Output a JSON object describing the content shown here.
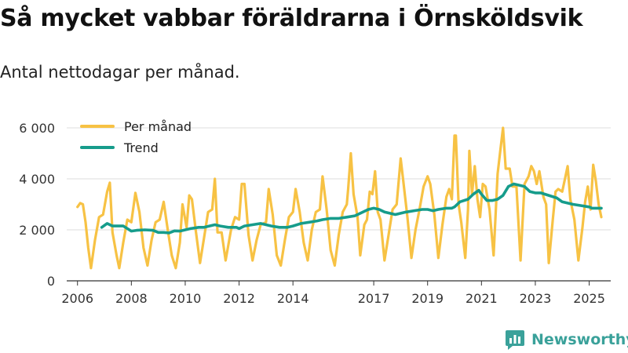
{
  "header": {
    "title": "Så mycket vabbar föräldrarna i Örnsköldsvik",
    "subtitle": "Antal nettodagar per månad."
  },
  "brand": {
    "name": "Newsworthy",
    "icon": "newsworthy-logo-icon"
  },
  "colors": {
    "monthly": "#f7c244",
    "trend": "#169c8b",
    "grid": "#dddddd",
    "brand": "#3aa19a"
  },
  "chart_data": {
    "type": "line",
    "title": "Så mycket vabbar föräldrarna i Örnsköldsvik",
    "subtitle": "Antal nettodagar per månad.",
    "xlabel": "",
    "ylabel": "",
    "xlim": [
      2005.6,
      2025.8
    ],
    "ylim": [
      0,
      6000
    ],
    "grid": true,
    "legend_position": "top-left",
    "x_ticks": [
      {
        "value": 2006,
        "label": "2006"
      },
      {
        "value": 2008,
        "label": "2008"
      },
      {
        "value": 2010,
        "label": "2010"
      },
      {
        "value": 2012,
        "label": "2012"
      },
      {
        "value": 2014,
        "label": "2014"
      },
      {
        "value": 2017,
        "label": "2017"
      },
      {
        "value": 2019,
        "label": "2019"
      },
      {
        "value": 2021,
        "label": "2021"
      },
      {
        "value": 2023,
        "label": "2023"
      },
      {
        "value": 2025,
        "label": "2025"
      }
    ],
    "y_ticks": [
      {
        "value": 0,
        "label": "0"
      },
      {
        "value": 2000,
        "label": "2 000"
      },
      {
        "value": 4000,
        "label": "4 000"
      },
      {
        "value": 6000,
        "label": "6 000"
      }
    ],
    "series": [
      {
        "name": "Per månad",
        "color": "#f7c244",
        "points": [
          [
            2006.0,
            2900
          ],
          [
            2006.1,
            3050
          ],
          [
            2006.2,
            3000
          ],
          [
            2006.3,
            2300
          ],
          [
            2006.4,
            1300
          ],
          [
            2006.5,
            500
          ],
          [
            2006.65,
            1600
          ],
          [
            2006.8,
            2500
          ],
          [
            2006.95,
            2600
          ],
          [
            2007.1,
            3500
          ],
          [
            2007.2,
            3850
          ],
          [
            2007.3,
            1900
          ],
          [
            2007.45,
            1000
          ],
          [
            2007.55,
            500
          ],
          [
            2007.7,
            1500
          ],
          [
            2007.85,
            2400
          ],
          [
            2008.0,
            2300
          ],
          [
            2008.15,
            3450
          ],
          [
            2008.3,
            2700
          ],
          [
            2008.45,
            1300
          ],
          [
            2008.6,
            600
          ],
          [
            2008.75,
            1600
          ],
          [
            2008.9,
            2300
          ],
          [
            2009.05,
            2400
          ],
          [
            2009.2,
            3100
          ],
          [
            2009.35,
            2000
          ],
          [
            2009.5,
            1000
          ],
          [
            2009.65,
            500
          ],
          [
            2009.8,
            1500
          ],
          [
            2009.9,
            3000
          ],
          [
            2010.05,
            2100
          ],
          [
            2010.15,
            3350
          ],
          [
            2010.25,
            3200
          ],
          [
            2010.4,
            1900
          ],
          [
            2010.55,
            700
          ],
          [
            2010.7,
            1700
          ],
          [
            2010.85,
            2700
          ],
          [
            2011.0,
            2800
          ],
          [
            2011.1,
            4000
          ],
          [
            2011.2,
            1900
          ],
          [
            2011.35,
            1900
          ],
          [
            2011.5,
            800
          ],
          [
            2011.7,
            2000
          ],
          [
            2011.85,
            2500
          ],
          [
            2012.0,
            2400
          ],
          [
            2012.1,
            3800
          ],
          [
            2012.2,
            3800
          ],
          [
            2012.35,
            1800
          ],
          [
            2012.5,
            800
          ],
          [
            2012.65,
            1600
          ],
          [
            2012.8,
            2200
          ],
          [
            2013.0,
            2300
          ],
          [
            2013.1,
            3600
          ],
          [
            2013.25,
            2600
          ],
          [
            2013.4,
            1000
          ],
          [
            2013.55,
            600
          ],
          [
            2013.7,
            1600
          ],
          [
            2013.85,
            2500
          ],
          [
            2014.0,
            2700
          ],
          [
            2014.1,
            3600
          ],
          [
            2014.25,
            2700
          ],
          [
            2014.4,
            1500
          ],
          [
            2014.55,
            800
          ],
          [
            2014.7,
            2000
          ],
          [
            2014.85,
            2700
          ],
          [
            2015.0,
            2800
          ],
          [
            2015.1,
            4100
          ],
          [
            2015.25,
            2800
          ],
          [
            2015.4,
            1200
          ],
          [
            2015.55,
            600
          ],
          [
            2015.7,
            1800
          ],
          [
            2015.85,
            2700
          ],
          [
            2016.0,
            3000
          ],
          [
            2016.05,
            3600
          ],
          [
            2016.15,
            5000
          ],
          [
            2016.25,
            3400
          ],
          [
            2016.4,
            2500
          ],
          [
            2016.5,
            1000
          ],
          [
            2016.65,
            2200
          ],
          [
            2016.75,
            2400
          ],
          [
            2016.85,
            3500
          ],
          [
            2016.95,
            3400
          ],
          [
            2017.05,
            4300
          ],
          [
            2017.15,
            2700
          ],
          [
            2017.25,
            2400
          ],
          [
            2017.4,
            800
          ],
          [
            2017.55,
            1800
          ],
          [
            2017.7,
            2800
          ],
          [
            2017.85,
            3000
          ],
          [
            2018.0,
            4800
          ],
          [
            2018.1,
            3900
          ],
          [
            2018.25,
            2500
          ],
          [
            2018.4,
            900
          ],
          [
            2018.55,
            2000
          ],
          [
            2018.7,
            2800
          ],
          [
            2018.85,
            3700
          ],
          [
            2019.0,
            4100
          ],
          [
            2019.1,
            3800
          ],
          [
            2019.25,
            2600
          ],
          [
            2019.4,
            900
          ],
          [
            2019.55,
            2200
          ],
          [
            2019.7,
            3300
          ],
          [
            2019.8,
            3600
          ],
          [
            2019.9,
            3200
          ],
          [
            2020.0,
            5700
          ],
          [
            2020.05,
            5700
          ],
          [
            2020.15,
            3000
          ],
          [
            2020.25,
            2300
          ],
          [
            2020.4,
            900
          ],
          [
            2020.5,
            2800
          ],
          [
            2020.55,
            5100
          ],
          [
            2020.65,
            3400
          ],
          [
            2020.75,
            4500
          ],
          [
            2020.85,
            3200
          ],
          [
            2020.95,
            2500
          ],
          [
            2021.05,
            3800
          ],
          [
            2021.15,
            3700
          ],
          [
            2021.3,
            2800
          ],
          [
            2021.45,
            1000
          ],
          [
            2021.6,
            4200
          ],
          [
            2021.7,
            5100
          ],
          [
            2021.8,
            6000
          ],
          [
            2021.9,
            4400
          ],
          [
            2022.05,
            4400
          ],
          [
            2022.15,
            3700
          ],
          [
            2022.3,
            3700
          ],
          [
            2022.45,
            800
          ],
          [
            2022.6,
            3800
          ],
          [
            2022.75,
            4100
          ],
          [
            2022.85,
            4500
          ],
          [
            2022.95,
            4300
          ],
          [
            2023.05,
            3800
          ],
          [
            2023.15,
            4300
          ],
          [
            2023.3,
            3300
          ],
          [
            2023.4,
            3000
          ],
          [
            2023.5,
            700
          ],
          [
            2023.65,
            2400
          ],
          [
            2023.75,
            3500
          ],
          [
            2023.85,
            3600
          ],
          [
            2024.0,
            3500
          ],
          [
            2024.1,
            4000
          ],
          [
            2024.2,
            4500
          ],
          [
            2024.3,
            3200
          ],
          [
            2024.45,
            2400
          ],
          [
            2024.6,
            800
          ],
          [
            2024.75,
            2100
          ],
          [
            2024.85,
            3100
          ],
          [
            2024.95,
            3700
          ],
          [
            2025.05,
            2800
          ],
          [
            2025.15,
            4550
          ],
          [
            2025.25,
            3900
          ],
          [
            2025.35,
            3000
          ],
          [
            2025.45,
            2500
          ]
        ]
      },
      {
        "name": "Trend",
        "color": "#169c8b",
        "points": [
          [
            2006.9,
            2100
          ],
          [
            2007.1,
            2250
          ],
          [
            2007.3,
            2150
          ],
          [
            2007.5,
            2150
          ],
          [
            2007.7,
            2150
          ],
          [
            2007.85,
            2050
          ],
          [
            2008.0,
            1950
          ],
          [
            2008.2,
            1980
          ],
          [
            2008.5,
            2000
          ],
          [
            2008.8,
            1980
          ],
          [
            2009.0,
            1900
          ],
          [
            2009.2,
            1900
          ],
          [
            2009.4,
            1880
          ],
          [
            2009.6,
            1960
          ],
          [
            2009.8,
            1950
          ],
          [
            2010.0,
            2000
          ],
          [
            2010.2,
            2050
          ],
          [
            2010.5,
            2100
          ],
          [
            2010.7,
            2100
          ],
          [
            2010.9,
            2150
          ],
          [
            2011.1,
            2200
          ],
          [
            2011.3,
            2150
          ],
          [
            2011.6,
            2100
          ],
          [
            2011.9,
            2100
          ],
          [
            2012.0,
            2050
          ],
          [
            2012.2,
            2150
          ],
          [
            2012.5,
            2200
          ],
          [
            2012.8,
            2250
          ],
          [
            2013.0,
            2200
          ],
          [
            2013.2,
            2150
          ],
          [
            2013.5,
            2100
          ],
          [
            2013.8,
            2100
          ],
          [
            2014.0,
            2150
          ],
          [
            2014.3,
            2250
          ],
          [
            2014.6,
            2300
          ],
          [
            2014.9,
            2350
          ],
          [
            2015.1,
            2400
          ],
          [
            2015.4,
            2450
          ],
          [
            2015.7,
            2450
          ],
          [
            2016.0,
            2500
          ],
          [
            2016.3,
            2550
          ],
          [
            2016.6,
            2700
          ],
          [
            2016.8,
            2800
          ],
          [
            2017.0,
            2850
          ],
          [
            2017.2,
            2800
          ],
          [
            2017.4,
            2700
          ],
          [
            2017.6,
            2650
          ],
          [
            2017.8,
            2600
          ],
          [
            2018.0,
            2650
          ],
          [
            2018.2,
            2700
          ],
          [
            2018.5,
            2750
          ],
          [
            2018.8,
            2800
          ],
          [
            2019.0,
            2800
          ],
          [
            2019.2,
            2750
          ],
          [
            2019.4,
            2800
          ],
          [
            2019.7,
            2850
          ],
          [
            2019.9,
            2850
          ],
          [
            2020.0,
            2900
          ],
          [
            2020.2,
            3100
          ],
          [
            2020.5,
            3200
          ],
          [
            2020.7,
            3400
          ],
          [
            2020.9,
            3550
          ],
          [
            2021.0,
            3400
          ],
          [
            2021.2,
            3150
          ],
          [
            2021.4,
            3150
          ],
          [
            2021.6,
            3200
          ],
          [
            2021.8,
            3350
          ],
          [
            2022.0,
            3700
          ],
          [
            2022.2,
            3800
          ],
          [
            2022.4,
            3750
          ],
          [
            2022.6,
            3700
          ],
          [
            2022.8,
            3500
          ],
          [
            2023.0,
            3450
          ],
          [
            2023.2,
            3450
          ],
          [
            2023.5,
            3350
          ],
          [
            2023.8,
            3250
          ],
          [
            2024.0,
            3100
          ],
          [
            2024.2,
            3050
          ],
          [
            2024.4,
            3000
          ],
          [
            2024.7,
            2950
          ],
          [
            2025.0,
            2900
          ],
          [
            2025.1,
            2850
          ],
          [
            2025.3,
            2850
          ],
          [
            2025.45,
            2850
          ]
        ]
      }
    ]
  }
}
